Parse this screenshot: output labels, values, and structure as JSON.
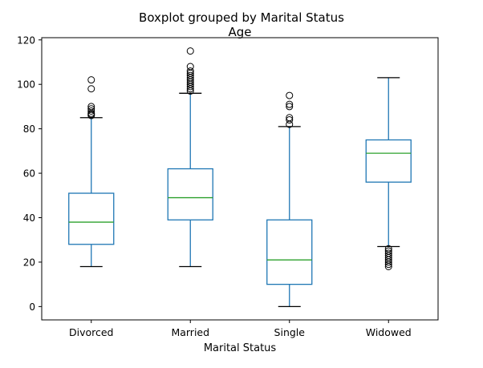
{
  "chart_data": {
    "type": "boxplot",
    "suptitle": "Boxplot grouped by Marital Status",
    "title": "Age",
    "xlabel": "Marital Status",
    "ylabel": "",
    "ylim": [
      -6,
      121
    ],
    "yticks": [
      0,
      20,
      40,
      60,
      80,
      100,
      120
    ],
    "grid": false,
    "colors": {
      "box": "#1f77b4",
      "median": "#2ca02c",
      "flier": "#000000"
    },
    "categories": [
      "Divorced",
      "Married",
      "Single",
      "Widowed"
    ],
    "boxes": [
      {
        "name": "Divorced",
        "whisker_low": 18,
        "q1": 28,
        "median": 38,
        "q3": 51,
        "whisker_high": 85,
        "fliers": [
          86,
          86.5,
          87,
          88,
          89,
          90,
          98,
          102
        ]
      },
      {
        "name": "Married",
        "whisker_low": 18,
        "q1": 39,
        "median": 49,
        "q3": 62,
        "whisker_high": 96,
        "fliers": [
          97,
          98,
          99,
          100,
          101,
          102,
          103,
          104,
          105,
          106,
          108,
          115
        ]
      },
      {
        "name": "Single",
        "whisker_low": 0,
        "q1": 10,
        "median": 21,
        "q3": 39,
        "whisker_high": 81,
        "fliers": [
          82,
          84,
          85,
          90,
          91,
          95
        ]
      },
      {
        "name": "Widowed",
        "whisker_low": 27,
        "q1": 56,
        "median": 69,
        "q3": 75,
        "whisker_high": 103,
        "fliers": [
          18,
          19,
          20,
          21,
          22,
          23,
          24,
          25,
          26
        ]
      }
    ]
  }
}
